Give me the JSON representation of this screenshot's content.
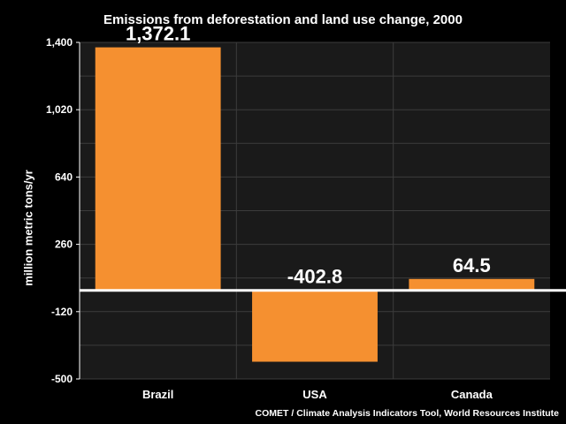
{
  "chart_data": {
    "type": "bar",
    "title": "Emissions from deforestation and land use change, 2000",
    "ylabel": "million metric tons/yr",
    "xlabel": "",
    "categories": [
      "Brazil",
      "USA",
      "Canada"
    ],
    "values": [
      1372.1,
      -402.8,
      64.5
    ],
    "value_labels": [
      "1,372.1",
      "-402.8",
      "64.5"
    ],
    "yticks": [
      1400,
      1020,
      640,
      260,
      -120,
      -500
    ],
    "ytick_labels": [
      "1,400",
      "1,020",
      "640",
      "260",
      "-120",
      "-500"
    ],
    "ylim": [
      -500,
      1400
    ],
    "grid": true,
    "legend": "none",
    "bar_color": "#f59030",
    "plot_background": "#1a1a1a",
    "background": "#000000",
    "source": "COMET / Climate Analysis Indicators Tool, World Resources Institute"
  }
}
